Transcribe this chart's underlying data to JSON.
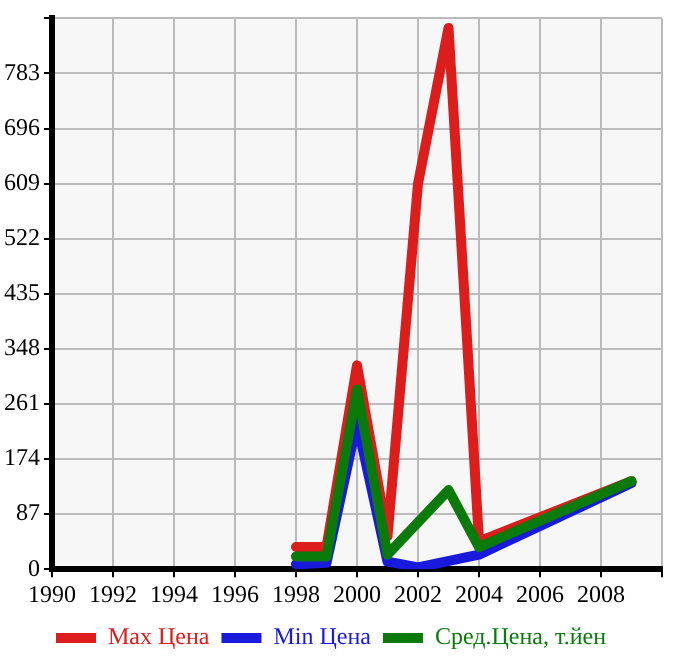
{
  "chart_data": {
    "type": "line",
    "xlim": [
      1990,
      2010
    ],
    "xticks": [
      1990,
      1992,
      1994,
      1996,
      1998,
      2000,
      2002,
      2004,
      2006,
      2008,
      {
        "value": 2010,
        "label": null
      }
    ],
    "ylim": [
      0,
      870
    ],
    "yticks": [
      0,
      87,
      174,
      261,
      348,
      435,
      522,
      609,
      696,
      783,
      {
        "value": 870,
        "label": null
      }
    ],
    "grid": true,
    "legend": "bottom",
    "marker": "none",
    "line_style": "solid",
    "series": [
      {
        "name": "Max Цена",
        "color": "#dd1c1c",
        "x": [
          1998,
          1999,
          2000,
          2001,
          2002,
          2003,
          2004,
          2009
        ],
        "values": [
          35,
          35,
          322,
          52,
          609,
          855,
          44,
          139
        ]
      },
      {
        "name": "Min Цена",
        "color": "#1a1adc",
        "x": [
          1998,
          1999,
          2000,
          2001,
          2002,
          2004,
          2009
        ],
        "values": [
          8,
          10,
          232,
          12,
          3,
          23,
          136
        ]
      },
      {
        "name": "Сред.Цена, т.йен",
        "color": "#0a7a0a",
        "x": [
          1998,
          1999,
          2000,
          2001,
          2003,
          2004,
          2009
        ],
        "values": [
          20,
          20,
          284,
          23,
          125,
          35,
          139
        ]
      }
    ]
  }
}
